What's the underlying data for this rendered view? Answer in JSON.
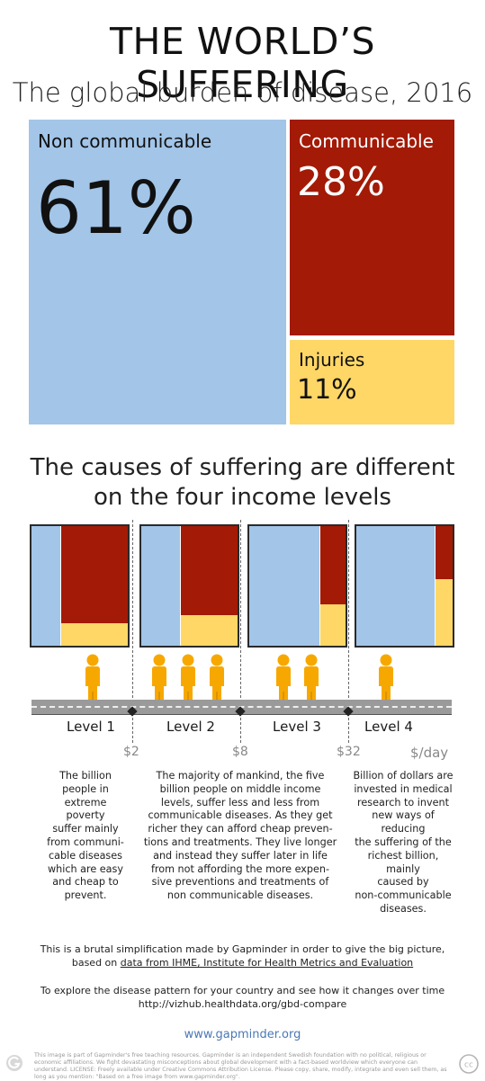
{
  "title": "THE WORLD’S SUFFERING",
  "subtitle": "The global burden of disease, 2016",
  "treemap": {
    "cells": [
      {
        "label": "Non communicable",
        "percent": "61%"
      },
      {
        "label": "Communicable",
        "percent": "28%"
      },
      {
        "label": "Injuries",
        "percent": "11%"
      }
    ]
  },
  "colors": {
    "non_communicable": "#a2c5e8",
    "communicable": "#a31a06",
    "injuries": "#fed766",
    "person": "#f7a800",
    "link": "#4a78b5"
  },
  "chart_data": [
    {
      "type": "treemap",
      "title": "The global burden of disease, 2016",
      "categories": [
        "Non communicable",
        "Communicable",
        "Injuries"
      ],
      "values": [
        61,
        28,
        11
      ],
      "unit": "%"
    },
    {
      "type": "bar",
      "stacked": true,
      "title": "The causes of suffering are different on the four income levels",
      "categories": [
        "Level 1",
        "Level 2",
        "Level 3",
        "Level 4"
      ],
      "series": [
        {
          "values": [
            31,
            41,
            74,
            82
          ]
        },
        {
          "values": [
            56,
            44,
            17,
            8
          ]
        },
        {
          "values": [
            13,
            15,
            9,
            10
          ]
        }
      ],
      "people_per_level": [
        1,
        3,
        2,
        1
      ],
      "x_thresholds": [
        "$2",
        "$8",
        "$32"
      ],
      "x_unit": "$/day"
    }
  ],
  "cause_heading": {
    "line1": "The causes of suffering are different",
    "line2": "on the four income levels"
  },
  "levels": [
    "Level 1",
    "Level 2",
    "Level 3",
    "Level 4"
  ],
  "thresholds": [
    "$2",
    "$8",
    "$32",
    "$/day"
  ],
  "descriptions": [
    [
      "The billion",
      "people in",
      "extreme poverty",
      "suffer mainly",
      "from communi-",
      "cable diseases",
      "which are easy",
      "and cheap to",
      "prevent."
    ],
    [
      "The majority of mankind, the five",
      "billion people on middle income",
      "levels, suffer less and less from",
      "communicable diseases. As they get",
      "richer they can afford cheap preven-",
      "tions and treatments. They live longer",
      "and instead they suffer later in life",
      "from not affording the more expen-",
      "sive preventions and treatments of",
      "non communicable diseases."
    ],
    [
      "Billion of dollars are",
      "invested in medical",
      "research to invent",
      "new ways of reducing",
      "the suffering of the",
      "richest billion, mainly",
      "caused by",
      "non-communicable",
      "diseases."
    ]
  ],
  "footer": {
    "note_line1": "This is a brutal simplification made by Gapminder in order to give the big picture,",
    "note_line2_prefix": "based on ",
    "note_link": "data from IHME, Institute for Health Metrics and Evaluation",
    "explore_line1": "To explore the disease pattern for your country and see how it changes over time",
    "explore_line2": "http://vizhub.healthdata.org/gbd-compare",
    "website": "www.gapminder.org",
    "credit": "This image is part of Gapminder's free teaching resources. Gapminder is an independent Swedish foundation with no political, religious or economic affiliations. We fight devastating misconceptions about global development with a fact-based worldview which everyone can understand. LICENSE: Freely available under Creative Commons Attribution License. Please copy, share, modify, integrate and even sell them, as long as you mention: \"Based on a free image from www.gapminder.org\".",
    "cc_label": "cc"
  }
}
